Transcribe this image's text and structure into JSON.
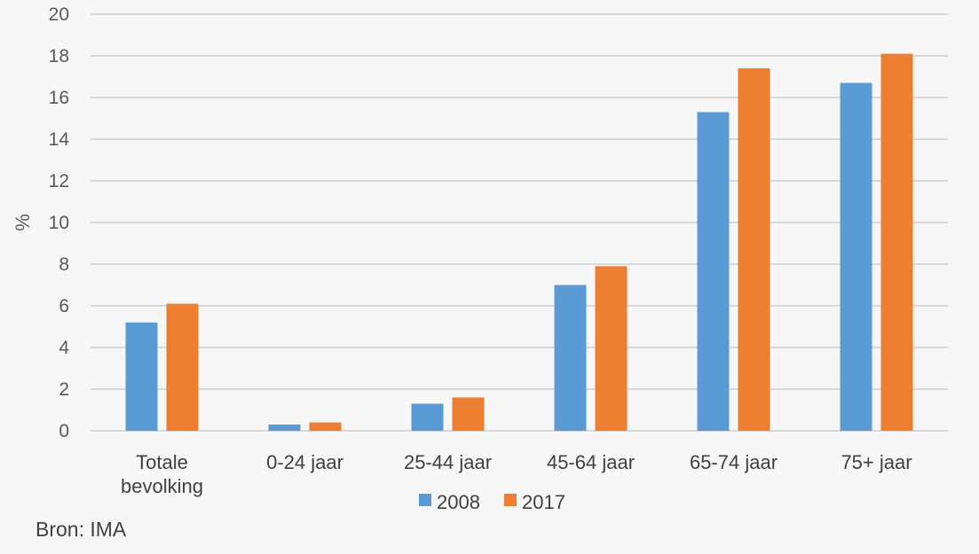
{
  "chart_data": {
    "type": "bar",
    "categories": [
      [
        "Totale",
        "bevolking"
      ],
      [
        "0-24 jaar"
      ],
      [
        "25-44 jaar"
      ],
      [
        "45-64 jaar"
      ],
      [
        "65-74 jaar"
      ],
      [
        "75+ jaar"
      ]
    ],
    "series": [
      {
        "name": "2008",
        "values": [
          5.2,
          0.3,
          1.3,
          7.0,
          15.3,
          16.7
        ],
        "color": "#5b9bd5"
      },
      {
        "name": "2017",
        "values": [
          6.1,
          0.4,
          1.6,
          7.9,
          17.4,
          18.1
        ],
        "color": "#ed7d31"
      }
    ],
    "ylabel": "%",
    "ylim": [
      0,
      20
    ],
    "yticks": [
      0,
      2,
      4,
      6,
      8,
      10,
      12,
      14,
      16,
      18,
      20
    ],
    "grid": true,
    "legend_position": "bottom"
  },
  "source_text": "Bron: IMA",
  "colors": {
    "gridline": "#d9d9d9",
    "background": "#f7f7f7"
  }
}
